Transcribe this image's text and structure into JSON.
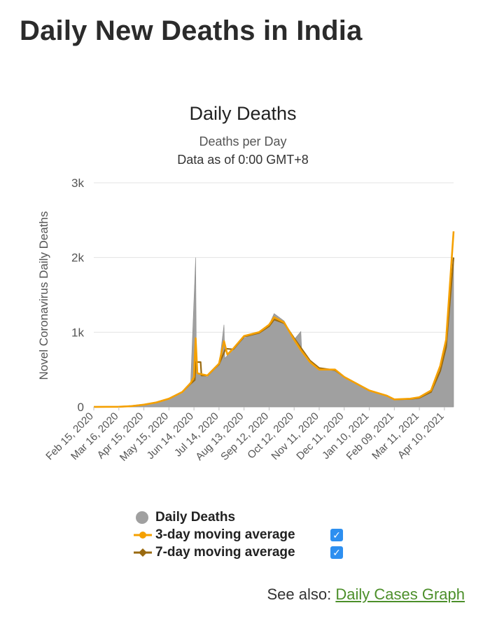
{
  "page": {
    "title": "Daily New Deaths in India",
    "see_also_prefix": "See also:",
    "see_also_link": "Daily Cases Graph"
  },
  "legend": {
    "items": [
      {
        "label": "Daily Deaths",
        "color": "#a0a0a0",
        "checked": null
      },
      {
        "label": "3-day moving average",
        "color": "#f5a000",
        "checked": true
      },
      {
        "label": "7-day moving average",
        "color": "#9a6a10",
        "checked": true
      }
    ]
  },
  "chart_data": {
    "type": "area",
    "title": "Daily Deaths",
    "subtitle_lines": [
      "Deaths per Day",
      "Data as of 0:00 GMT+8"
    ],
    "ylabel": "Novel Coronavirus Daily Deaths",
    "ylim": [
      0,
      3000
    ],
    "yticks": [
      0,
      1000,
      2000,
      3000
    ],
    "ytick_labels": [
      "0",
      "1k",
      "2k",
      "3k"
    ],
    "xaxis_start": "2020-02-15",
    "xaxis_end": "2021-04-21",
    "xtick_labels": [
      "Feb 15, 2020",
      "Mar 16, 2020",
      "Apr 15, 2020",
      "May 15, 2020",
      "Jun 14, 2020",
      "Jul 14, 2020",
      "Aug 13, 2020",
      "Sep 12, 2020",
      "Oct 12, 2020",
      "Nov 11, 2020",
      "Dec 11, 2020",
      "Jan 10, 2021",
      "Feb 09, 2021",
      "Mar 11, 2021",
      "Apr 10, 2021"
    ],
    "xtick_dates": [
      "2020-02-15",
      "2020-03-16",
      "2020-04-15",
      "2020-05-15",
      "2020-06-14",
      "2020-07-14",
      "2020-08-13",
      "2020-09-12",
      "2020-10-12",
      "2020-11-11",
      "2020-12-11",
      "2021-01-10",
      "2021-02-09",
      "2021-03-11",
      "2021-04-10"
    ],
    "grid": true,
    "series": [
      {
        "name": "Daily Deaths",
        "color": "#a0a0a0",
        "points": [
          [
            "2020-02-15",
            0
          ],
          [
            "2020-03-16",
            2
          ],
          [
            "2020-03-31",
            10
          ],
          [
            "2020-04-15",
            30
          ],
          [
            "2020-04-30",
            60
          ],
          [
            "2020-05-15",
            110
          ],
          [
            "2020-05-31",
            200
          ],
          [
            "2020-06-10",
            300
          ],
          [
            "2020-06-16",
            2000
          ],
          [
            "2020-06-17",
            450
          ],
          [
            "2020-06-30",
            400
          ],
          [
            "2020-07-14",
            550
          ],
          [
            "2020-07-20",
            1100
          ],
          [
            "2020-07-21",
            650
          ],
          [
            "2020-07-31",
            780
          ],
          [
            "2020-08-13",
            920
          ],
          [
            "2020-08-31",
            1000
          ],
          [
            "2020-09-12",
            1100
          ],
          [
            "2020-09-18",
            1250
          ],
          [
            "2020-09-30",
            1150
          ],
          [
            "2020-10-12",
            900
          ],
          [
            "2020-10-20",
            1010
          ],
          [
            "2020-10-21",
            750
          ],
          [
            "2020-10-31",
            600
          ],
          [
            "2020-11-11",
            500
          ],
          [
            "2020-11-30",
            500
          ],
          [
            "2020-12-11",
            400
          ],
          [
            "2020-12-31",
            280
          ],
          [
            "2021-01-10",
            220
          ],
          [
            "2021-01-31",
            150
          ],
          [
            "2021-02-09",
            100
          ],
          [
            "2021-02-28",
            110
          ],
          [
            "2021-03-11",
            130
          ],
          [
            "2021-03-25",
            200
          ],
          [
            "2021-04-05",
            500
          ],
          [
            "2021-04-12",
            850
          ],
          [
            "2021-04-21",
            2000
          ]
        ]
      },
      {
        "name": "3-day moving average",
        "color": "#f5a000",
        "points": [
          [
            "2020-02-15",
            0
          ],
          [
            "2020-03-16",
            2
          ],
          [
            "2020-03-31",
            10
          ],
          [
            "2020-04-15",
            30
          ],
          [
            "2020-04-30",
            60
          ],
          [
            "2020-05-15",
            110
          ],
          [
            "2020-05-31",
            200
          ],
          [
            "2020-06-10",
            320
          ],
          [
            "2020-06-14",
            400
          ],
          [
            "2020-06-16",
            920
          ],
          [
            "2020-06-18",
            450
          ],
          [
            "2020-06-30",
            420
          ],
          [
            "2020-07-14",
            580
          ],
          [
            "2020-07-20",
            880
          ],
          [
            "2020-07-24",
            700
          ],
          [
            "2020-07-31",
            780
          ],
          [
            "2020-08-13",
            950
          ],
          [
            "2020-08-31",
            1000
          ],
          [
            "2020-09-12",
            1100
          ],
          [
            "2020-09-18",
            1200
          ],
          [
            "2020-09-30",
            1130
          ],
          [
            "2020-10-12",
            900
          ],
          [
            "2020-10-20",
            760
          ],
          [
            "2020-10-31",
            600
          ],
          [
            "2020-11-11",
            500
          ],
          [
            "2020-11-30",
            500
          ],
          [
            "2020-12-11",
            400
          ],
          [
            "2020-12-31",
            280
          ],
          [
            "2021-01-10",
            220
          ],
          [
            "2021-01-31",
            150
          ],
          [
            "2021-02-09",
            100
          ],
          [
            "2021-02-28",
            110
          ],
          [
            "2021-03-11",
            130
          ],
          [
            "2021-03-25",
            220
          ],
          [
            "2021-04-05",
            550
          ],
          [
            "2021-04-12",
            900
          ],
          [
            "2021-04-21",
            2350
          ]
        ]
      },
      {
        "name": "7-day moving average",
        "color": "#9a6a10",
        "points": [
          [
            "2020-02-15",
            0
          ],
          [
            "2020-03-16",
            2
          ],
          [
            "2020-03-31",
            10
          ],
          [
            "2020-04-15",
            30
          ],
          [
            "2020-04-30",
            60
          ],
          [
            "2020-05-15",
            110
          ],
          [
            "2020-05-31",
            200
          ],
          [
            "2020-06-10",
            310
          ],
          [
            "2020-06-15",
            360
          ],
          [
            "2020-06-16",
            600
          ],
          [
            "2020-06-22",
            600
          ],
          [
            "2020-06-23",
            420
          ],
          [
            "2020-06-30",
            420
          ],
          [
            "2020-07-14",
            570
          ],
          [
            "2020-07-22",
            780
          ],
          [
            "2020-07-31",
            770
          ],
          [
            "2020-08-13",
            940
          ],
          [
            "2020-08-31",
            990
          ],
          [
            "2020-09-12",
            1080
          ],
          [
            "2020-09-18",
            1170
          ],
          [
            "2020-09-30",
            1120
          ],
          [
            "2020-10-12",
            920
          ],
          [
            "2020-10-31",
            620
          ],
          [
            "2020-11-11",
            520
          ],
          [
            "2020-11-30",
            490
          ],
          [
            "2020-12-11",
            400
          ],
          [
            "2020-12-31",
            280
          ],
          [
            "2021-01-10",
            220
          ],
          [
            "2021-01-31",
            150
          ],
          [
            "2021-02-09",
            100
          ],
          [
            "2021-02-28",
            105
          ],
          [
            "2021-03-11",
            120
          ],
          [
            "2021-03-25",
            200
          ],
          [
            "2021-04-05",
            480
          ],
          [
            "2021-04-12",
            800
          ],
          [
            "2021-04-21",
            2000
          ]
        ]
      }
    ]
  }
}
